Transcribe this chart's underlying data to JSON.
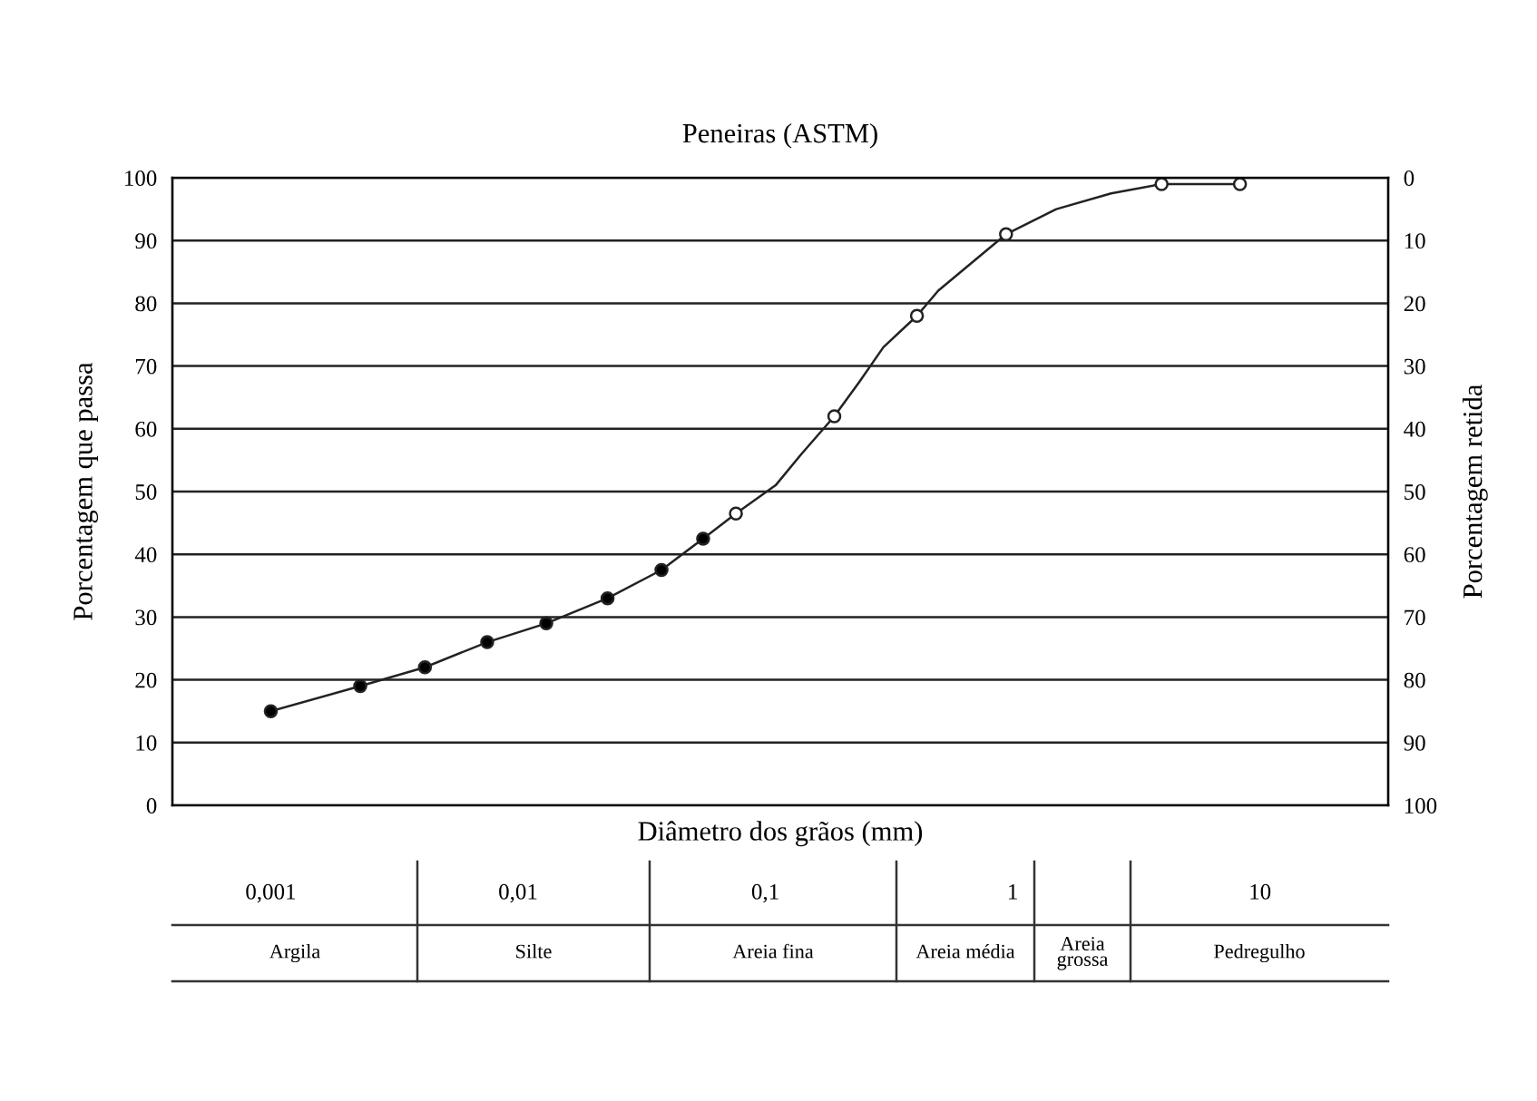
{
  "chart_data": {
    "type": "line",
    "title": "Peneiras (ASTM)",
    "xlabel": "Diâmetro dos grãos (mm)",
    "ylabel": "Porcentagem que passa",
    "y2label": "Porcentagem retida",
    "log": "x",
    "grid": "y",
    "legend": false,
    "xlim": [
      0.0004,
      33
    ],
    "xticks": [
      {
        "value": 0.001,
        "label": "0,001"
      },
      {
        "value": 0.01,
        "label": "0,01"
      },
      {
        "value": 0.1,
        "label": "0,1"
      },
      {
        "value": 1,
        "label": "1"
      },
      {
        "value": 10,
        "label": "10"
      }
    ],
    "ylim": [
      0,
      100
    ],
    "yticks": [
      0,
      10,
      20,
      30,
      40,
      50,
      60,
      70,
      80,
      90,
      100
    ],
    "y2lim": [
      100,
      0
    ],
    "y2ticks": [
      0,
      10,
      20,
      30,
      40,
      50,
      60,
      70,
      80,
      90,
      100
    ],
    "series": [
      {
        "marker": "none",
        "color": "#222222",
        "x": [
          0.001,
          0.0023,
          0.0042,
          0.0075,
          0.013,
          0.023,
          0.038,
          0.056,
          0.076,
          0.11,
          0.14,
          0.19,
          0.24,
          0.3,
          0.41,
          0.5,
          0.94,
          1.5,
          2.5,
          4.0,
          4.9,
          8.3
        ],
        "values": [
          15,
          19,
          22,
          26,
          29,
          33,
          37.5,
          42.5,
          46.5,
          51,
          56,
          62,
          67.5,
          73,
          78,
          82,
          91,
          95,
          97.5,
          99,
          99,
          99
        ]
      },
      {
        "type": "scatter",
        "marker": "circle",
        "color": "#000000",
        "x": [
          0.001,
          0.0023,
          0.0042,
          0.0075,
          0.013,
          0.023,
          0.038,
          0.056
        ],
        "values": [
          15,
          19,
          22,
          26,
          29,
          33,
          37.5,
          42.5
        ]
      },
      {
        "type": "scatter",
        "marker": "circle",
        "color": "#ffffff",
        "x": [
          0.076,
          0.19,
          0.41,
          0.94,
          4.0,
          8.3
        ],
        "values": [
          46.5,
          62,
          78,
          91,
          99,
          99
        ]
      }
    ],
    "annotations": [
      "Argila",
      "Silte",
      "Areia fina",
      "Areia média",
      "Areia\ngrossa",
      "Pedregulho"
    ]
  }
}
